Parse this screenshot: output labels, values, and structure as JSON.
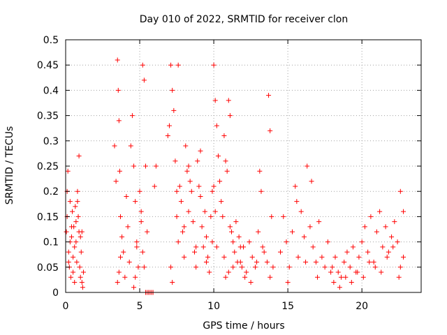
{
  "chart_data": {
    "type": "scatter",
    "title": "Day 010 of 2022, SRMTID for receiver clon",
    "xlabel": "GPS time / hours",
    "ylabel": "SRMTID / TECUs",
    "xlim": [
      0,
      24
    ],
    "ylim": [
      0,
      0.5
    ],
    "xticks": [
      "0",
      "5",
      "10",
      "15",
      "20"
    ],
    "xtick_values": [
      0,
      5,
      10,
      15,
      20
    ],
    "yticks": [
      "0",
      "0.05",
      "0.1",
      "0.15",
      "0.2",
      "0.25",
      "0.3",
      "0.35",
      "0.4",
      "0.45",
      "0.5"
    ],
    "ytick_values": [
      0,
      0.05,
      0.1,
      0.15,
      0.2,
      0.25,
      0.3,
      0.35,
      0.4,
      0.45,
      0.5
    ],
    "grid": true,
    "legend": "none",
    "marker": "plus",
    "color": "#ff0000",
    "series": [
      {
        "x": [
          0.05,
          0.1,
          0.15,
          0.2,
          0.25,
          0.3,
          0.35,
          0.4,
          0.45,
          0.5,
          0.55,
          0.6,
          0.65,
          0.7,
          0.75,
          0.8,
          0.85,
          0.9,
          0.95,
          1.0,
          1.05,
          1.1,
          1.15,
          1.2,
          0.1,
          0.2,
          0.3,
          0.4,
          0.5,
          0.6,
          0.7,
          0.8,
          0.9,
          1.0,
          1.1,
          3.3,
          3.4,
          3.5,
          3.55,
          3.6,
          3.65,
          3.7,
          3.8,
          3.9,
          4.0,
          4.1,
          4.2,
          4.3,
          4.4,
          4.5,
          4.6,
          4.7,
          4.8,
          4.9,
          5.0,
          5.1,
          5.2,
          5.3,
          5.4,
          5.5,
          3.5,
          3.6,
          3.7,
          4.6,
          4.7,
          4.8,
          5.1,
          5.2,
          5.3,
          5.4,
          5.4,
          5.5,
          5.6,
          5.7,
          5.8,
          5.9,
          6.0,
          6.1,
          6.9,
          7.0,
          7.1,
          7.2,
          7.3,
          7.4,
          7.5,
          7.6,
          7.7,
          7.8,
          7.9,
          8.0,
          8.1,
          8.2,
          8.3,
          8.4,
          8.5,
          8.6,
          8.7,
          8.8,
          8.9,
          9.0,
          9.1,
          9.2,
          9.3,
          9.4,
          9.5,
          9.6,
          9.7,
          9.8,
          9.9,
          7.1,
          7.2,
          7.5,
          7.6,
          8.0,
          8.3,
          8.8,
          9.1,
          9.5,
          9.9,
          10.0,
          10.1,
          10.2,
          10.3,
          10.4,
          10.5,
          10.6,
          10.7,
          10.8,
          10.9,
          11.0,
          11.1,
          11.2,
          11.3,
          11.4,
          11.5,
          11.6,
          11.7,
          11.8,
          11.9,
          10.0,
          10.1,
          10.2,
          10.7,
          10.8,
          11.0,
          11.1,
          11.3,
          11.8,
          12.0,
          12.2,
          12.4,
          12.6,
          12.8,
          13.0,
          13.2,
          13.4,
          13.6,
          13.8,
          14.0,
          12.1,
          12.5,
          12.9,
          13.1,
          13.3,
          13.7,
          13.8,
          13.9,
          14.5,
          14.7,
          14.9,
          15.1,
          15.3,
          15.5,
          15.7,
          15.9,
          16.1,
          16.3,
          16.5,
          16.7,
          16.9,
          17.1,
          17.3,
          17.5,
          17.7,
          17.9,
          15.0,
          15.6,
          16.2,
          16.6,
          17.0,
          18.0,
          18.2,
          18.4,
          18.6,
          18.8,
          19.0,
          19.2,
          19.4,
          19.6,
          19.8,
          20.0,
          20.2,
          20.4,
          20.6,
          20.8,
          21.0,
          21.2,
          21.4,
          21.6,
          21.8,
          22.0,
          22.2,
          22.4,
          22.6,
          22.8,
          18.1,
          18.5,
          18.9,
          19.3,
          19.7,
          20.1,
          20.5,
          20.9,
          21.3,
          21.7,
          22.1,
          22.5,
          22.6,
          22.8
        ],
        "y": [
          0.12,
          0.15,
          0.24,
          0.08,
          0.05,
          0.18,
          0.03,
          0.11,
          0.16,
          0.07,
          0.13,
          0.02,
          0.17,
          0.1,
          0.06,
          0.2,
          0.15,
          0.12,
          0.05,
          0.11,
          0.08,
          0.02,
          0.01,
          0.04,
          0.2,
          0.06,
          0.1,
          0.13,
          0.04,
          0.09,
          0.14,
          0.18,
          0.27,
          0.03,
          0.12,
          0.29,
          0.22,
          0.46,
          0.4,
          0.34,
          0.24,
          0.15,
          0.11,
          0.08,
          0.03,
          0.19,
          0.13,
          0.06,
          0.29,
          0.35,
          0.25,
          0.18,
          0.1,
          0.05,
          0.2,
          0.14,
          0.45,
          0.42,
          0.25,
          0.12,
          0.02,
          0.04,
          0.07,
          0.01,
          0.03,
          0.09,
          0.16,
          0.08,
          0.05,
          0.0,
          0.0,
          0.0,
          0.0,
          0.0,
          0.0,
          0.0,
          0.21,
          0.25,
          0.31,
          0.33,
          0.45,
          0.4,
          0.36,
          0.26,
          0.15,
          0.1,
          0.21,
          0.18,
          0.12,
          0.07,
          0.29,
          0.24,
          0.16,
          0.22,
          0.2,
          0.14,
          0.08,
          0.05,
          0.26,
          0.21,
          0.19,
          0.13,
          0.09,
          0.16,
          0.11,
          0.07,
          0.04,
          0.15,
          0.1,
          0.05,
          0.02,
          0.2,
          0.45,
          0.13,
          0.25,
          0.09,
          0.28,
          0.06,
          0.2,
          0.45,
          0.38,
          0.33,
          0.27,
          0.22,
          0.18,
          0.15,
          0.31,
          0.26,
          0.24,
          0.38,
          0.35,
          0.12,
          0.1,
          0.08,
          0.14,
          0.06,
          0.11,
          0.09,
          0.05,
          0.21,
          0.16,
          0.09,
          0.07,
          0.03,
          0.04,
          0.13,
          0.05,
          0.06,
          0.09,
          0.04,
          0.1,
          0.07,
          0.05,
          0.12,
          0.2,
          0.08,
          0.06,
          0.03,
          0.05,
          0.03,
          0.02,
          0.06,
          0.24,
          0.09,
          0.39,
          0.32,
          0.15,
          0.08,
          0.15,
          0.1,
          0.05,
          0.12,
          0.21,
          0.07,
          0.16,
          0.11,
          0.25,
          0.13,
          0.09,
          0.06,
          0.14,
          0.07,
          0.05,
          0.1,
          0.04,
          0.02,
          0.18,
          0.06,
          0.22,
          0.03,
          0.05,
          0.07,
          0.04,
          0.03,
          0.06,
          0.08,
          0.05,
          0.09,
          0.04,
          0.07,
          0.1,
          0.13,
          0.08,
          0.15,
          0.06,
          0.12,
          0.16,
          0.09,
          0.13,
          0.08,
          0.11,
          0.14,
          0.1,
          0.05,
          0.07,
          0.02,
          0.01,
          0.03,
          0.02,
          0.04,
          0.03,
          0.06,
          0.05,
          0.04,
          0.07,
          0.09,
          0.03,
          0.2,
          0.16
        ]
      }
    ]
  }
}
